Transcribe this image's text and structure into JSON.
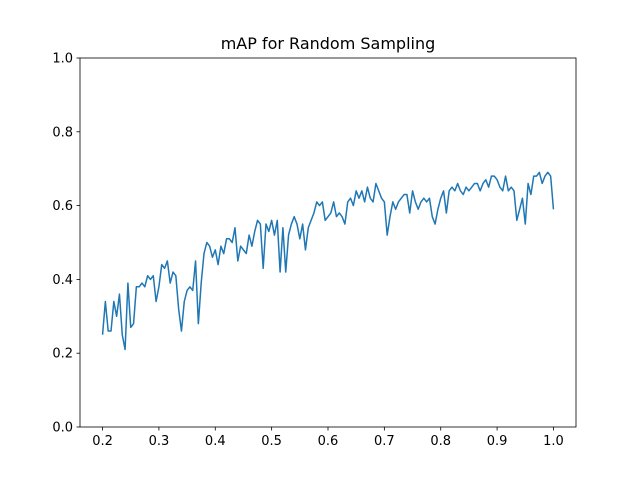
{
  "chart_data": {
    "type": "line",
    "title": "mAP for Random Sampling",
    "x": [
      0.2,
      0.205,
      0.21,
      0.215,
      0.22,
      0.225,
      0.23,
      0.235,
      0.24,
      0.245,
      0.25,
      0.255,
      0.26,
      0.265,
      0.27,
      0.275,
      0.28,
      0.285,
      0.29,
      0.295,
      0.3,
      0.305,
      0.31,
      0.315,
      0.32,
      0.325,
      0.33,
      0.335,
      0.34,
      0.345,
      0.35,
      0.355,
      0.36,
      0.365,
      0.37,
      0.375,
      0.38,
      0.385,
      0.39,
      0.395,
      0.4,
      0.405,
      0.41,
      0.415,
      0.42,
      0.425,
      0.43,
      0.435,
      0.44,
      0.445,
      0.45,
      0.455,
      0.46,
      0.465,
      0.47,
      0.475,
      0.48,
      0.485,
      0.49,
      0.495,
      0.5,
      0.505,
      0.51,
      0.515,
      0.52,
      0.525,
      0.53,
      0.535,
      0.54,
      0.545,
      0.55,
      0.555,
      0.56,
      0.565,
      0.57,
      0.575,
      0.58,
      0.585,
      0.59,
      0.595,
      0.6,
      0.605,
      0.61,
      0.615,
      0.62,
      0.625,
      0.63,
      0.635,
      0.64,
      0.645,
      0.65,
      0.655,
      0.66,
      0.665,
      0.67,
      0.675,
      0.68,
      0.685,
      0.69,
      0.695,
      0.7,
      0.705,
      0.71,
      0.715,
      0.72,
      0.725,
      0.73,
      0.735,
      0.74,
      0.745,
      0.75,
      0.755,
      0.76,
      0.765,
      0.77,
      0.775,
      0.78,
      0.785,
      0.79,
      0.795,
      0.8,
      0.805,
      0.81,
      0.815,
      0.82,
      0.825,
      0.83,
      0.835,
      0.84,
      0.845,
      0.85,
      0.855,
      0.86,
      0.865,
      0.87,
      0.875,
      0.88,
      0.885,
      0.89,
      0.895,
      0.9,
      0.905,
      0.91,
      0.915,
      0.92,
      0.925,
      0.93,
      0.935,
      0.94,
      0.945,
      0.95,
      0.955,
      0.96,
      0.965,
      0.97,
      0.975,
      0.98,
      0.985,
      0.99,
      0.995,
      1.0
    ],
    "series": [
      {
        "name": "mAP",
        "color": "#1f77b4",
        "values": [
          0.25,
          0.34,
          0.26,
          0.26,
          0.34,
          0.3,
          0.36,
          0.25,
          0.21,
          0.39,
          0.27,
          0.28,
          0.38,
          0.38,
          0.39,
          0.38,
          0.41,
          0.4,
          0.41,
          0.34,
          0.38,
          0.44,
          0.43,
          0.45,
          0.39,
          0.42,
          0.41,
          0.32,
          0.26,
          0.34,
          0.37,
          0.38,
          0.37,
          0.45,
          0.28,
          0.39,
          0.47,
          0.5,
          0.49,
          0.46,
          0.48,
          0.44,
          0.49,
          0.47,
          0.51,
          0.51,
          0.5,
          0.54,
          0.45,
          0.49,
          0.48,
          0.47,
          0.52,
          0.49,
          0.53,
          0.56,
          0.55,
          0.43,
          0.55,
          0.53,
          0.56,
          0.52,
          0.56,
          0.42,
          0.54,
          0.42,
          0.52,
          0.55,
          0.57,
          0.55,
          0.51,
          0.55,
          0.48,
          0.54,
          0.56,
          0.58,
          0.61,
          0.6,
          0.61,
          0.56,
          0.57,
          0.58,
          0.61,
          0.57,
          0.58,
          0.57,
          0.55,
          0.61,
          0.62,
          0.6,
          0.64,
          0.62,
          0.64,
          0.61,
          0.65,
          0.62,
          0.61,
          0.66,
          0.64,
          0.62,
          0.61,
          0.52,
          0.57,
          0.61,
          0.59,
          0.61,
          0.62,
          0.63,
          0.63,
          0.58,
          0.64,
          0.61,
          0.59,
          0.61,
          0.62,
          0.61,
          0.62,
          0.57,
          0.55,
          0.59,
          0.62,
          0.64,
          0.58,
          0.64,
          0.65,
          0.64,
          0.66,
          0.64,
          0.63,
          0.65,
          0.64,
          0.65,
          0.66,
          0.66,
          0.64,
          0.66,
          0.67,
          0.65,
          0.68,
          0.68,
          0.67,
          0.65,
          0.64,
          0.68,
          0.64,
          0.65,
          0.64,
          0.56,
          0.59,
          0.62,
          0.55,
          0.66,
          0.63,
          0.68,
          0.68,
          0.69,
          0.66,
          0.68,
          0.69,
          0.68,
          0.59
        ]
      }
    ],
    "xlim": [
      0.16,
      1.04
    ],
    "ylim": [
      0,
      1
    ],
    "xticks": [
      0.2,
      0.3,
      0.4,
      0.5,
      0.6,
      0.7,
      0.8,
      0.9,
      {
        "value": 1,
        "label": "1.0"
      }
    ],
    "yticks": [
      {
        "value": 0,
        "label": "0.0"
      },
      0.2,
      0.4,
      0.6,
      0.8,
      {
        "value": 1,
        "label": "1.0"
      }
    ]
  }
}
